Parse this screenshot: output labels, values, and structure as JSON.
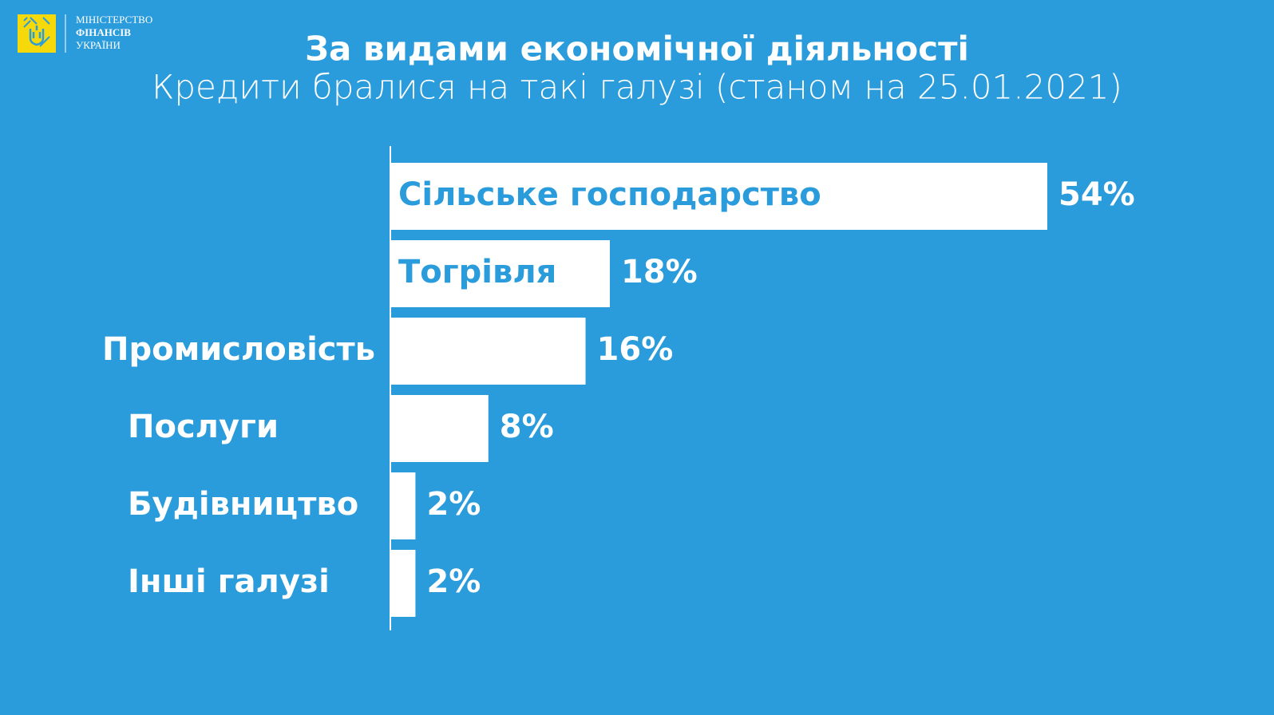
{
  "header": {
    "logo_lines": [
      "МІНІСТЕРСТВО",
      "ФІНАНСІВ",
      "УКРАЇНИ"
    ]
  },
  "chart_data": {
    "type": "hbar",
    "title": "За видами економічної діяльності",
    "subtitle": "Кредити бралися на такі галузі (станом на 25.01.2021)",
    "categories": [
      "Сільське господарство",
      "Тогрівля",
      "Промисловість",
      "Послуги",
      "Будівництво",
      "Інші галузі"
    ],
    "values": [
      54,
      18,
      16,
      8,
      2,
      2
    ],
    "value_labels": [
      "54%",
      "18%",
      "16%",
      "8%",
      "2%",
      "2%"
    ],
    "color": "#ffffff",
    "background": "#2a9bdb"
  }
}
